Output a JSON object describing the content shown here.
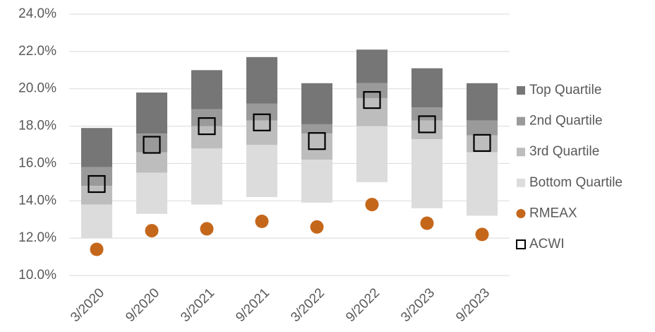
{
  "chart_data": {
    "type": "floating_bar",
    "categories": [
      "3/2020",
      "9/2020",
      "3/2021",
      "9/2021",
      "3/2022",
      "9/2022",
      "3/2023",
      "9/2023"
    ],
    "ylim": [
      10,
      24
    ],
    "yticks": [
      {
        "value": 10,
        "label": "10.0%"
      },
      {
        "value": 12,
        "label": "12.0%"
      },
      {
        "value": 14,
        "label": "14.0%"
      },
      {
        "value": 16,
        "label": "16.0%"
      },
      {
        "value": 18,
        "label": "18.0%"
      },
      {
        "value": 20,
        "label": "20.0%"
      },
      {
        "value": 22,
        "label": "22.0%"
      },
      {
        "value": 24,
        "label": "24.0%"
      }
    ],
    "grid": true,
    "legend": "right",
    "series": [
      {
        "name": "Top Quartile",
        "color": "#767676",
        "marker": "bar",
        "values": [
          [
            15.8,
            17.9
          ],
          [
            17.6,
            19.8
          ],
          [
            18.9,
            21.0
          ],
          [
            19.2,
            21.7
          ],
          [
            18.1,
            20.3
          ],
          [
            20.3,
            22.1
          ],
          [
            19.0,
            21.1
          ],
          [
            18.3,
            20.3
          ]
        ]
      },
      {
        "name": "2nd Quartile",
        "color": "#9a9a9a",
        "marker": "bar",
        "values": [
          [
            14.8,
            15.8
          ],
          [
            16.6,
            17.6
          ],
          [
            18.0,
            18.9
          ],
          [
            18.3,
            19.2
          ],
          [
            17.6,
            18.1
          ],
          [
            19.5,
            20.3
          ],
          [
            18.3,
            19.0
          ],
          [
            17.5,
            18.3
          ]
        ]
      },
      {
        "name": "3rd Quartile",
        "color": "#bdbdbd",
        "marker": "bar",
        "values": [
          [
            13.8,
            14.8
          ],
          [
            15.5,
            16.6
          ],
          [
            16.8,
            18.0
          ],
          [
            17.0,
            18.3
          ],
          [
            16.2,
            17.6
          ],
          [
            18.0,
            19.5
          ],
          [
            17.3,
            18.3
          ],
          [
            16.6,
            17.5
          ]
        ]
      },
      {
        "name": "Bottom Quartile",
        "color": "#dcdcdc",
        "marker": "bar",
        "values": [
          [
            12.0,
            13.8
          ],
          [
            13.3,
            15.5
          ],
          [
            13.8,
            16.8
          ],
          [
            14.2,
            17.0
          ],
          [
            13.9,
            16.2
          ],
          [
            15.0,
            18.0
          ],
          [
            13.6,
            17.3
          ],
          [
            13.2,
            16.6
          ]
        ]
      },
      {
        "name": "RMEAX",
        "color": "#c5671b",
        "marker": "circle",
        "values": [
          11.4,
          12.4,
          12.5,
          12.9,
          12.6,
          13.8,
          12.8,
          12.2
        ]
      },
      {
        "name": "ACWI",
        "color": "#000000",
        "marker": "square",
        "values": [
          14.9,
          17.0,
          18.0,
          18.2,
          17.2,
          19.4,
          18.1,
          17.1
        ]
      }
    ]
  }
}
